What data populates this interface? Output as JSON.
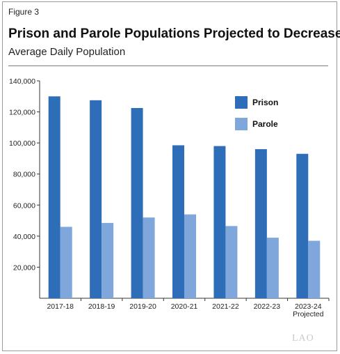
{
  "figure_label": "Figure 3",
  "title": "Prison and Parole Populations Projected to Decrease",
  "subtitle": "Average Daily Population",
  "logo_text": "LAO",
  "chart_data": {
    "type": "bar",
    "title": "Prison and Parole Populations Projected to Decrease",
    "subtitle": "Average Daily Population",
    "xlabel": "",
    "ylabel": "",
    "ylim": [
      0,
      140000
    ],
    "yticks": [
      20000,
      40000,
      60000,
      80000,
      100000,
      120000,
      140000
    ],
    "ytick_labels": [
      "20,000",
      "40,000",
      "60,000",
      "80,000",
      "100,000",
      "120,000",
      "140,000"
    ],
    "categories": [
      "2017-18",
      "2018-19",
      "2019-20",
      "2020-21",
      "2021-22",
      "2022-23",
      "2023-24"
    ],
    "category_sublabels": [
      "",
      "",
      "",
      "",
      "",
      "",
      "Projected"
    ],
    "series": [
      {
        "name": "Prison",
        "color": "#2e6db8",
        "values": [
          130000,
          127500,
          122500,
          98500,
          98000,
          96000,
          93000
        ]
      },
      {
        "name": "Parole",
        "color": "#7fa7dc",
        "values": [
          46000,
          48500,
          52000,
          54000,
          46500,
          39000,
          37000
        ]
      }
    ],
    "grid": false,
    "legend_position": "top-right"
  }
}
